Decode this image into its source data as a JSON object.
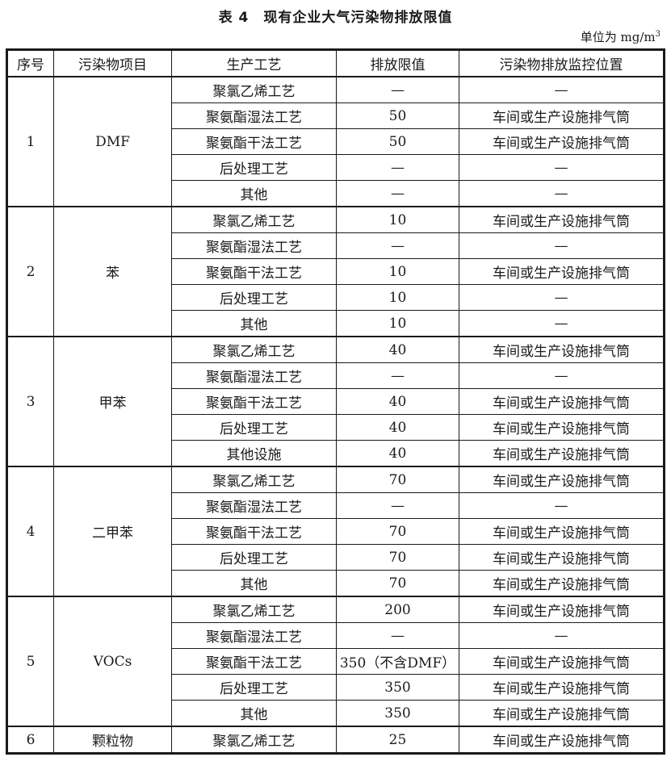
{
  "page": {
    "title": "表 4　现有企业大气污染物排放限值",
    "unit_prefix": "单位为",
    "unit_base": "mg/m",
    "unit_exponent": "3"
  },
  "table": {
    "headers": [
      "序号",
      "污染物项目",
      "生产工艺",
      "排放限值",
      "污染物排放监控位置"
    ],
    "groups": [
      {
        "no": "1",
        "pollutant": "DMF",
        "rows": [
          {
            "process": "聚氯乙烯工艺",
            "limit": "—",
            "location": "—"
          },
          {
            "process": "聚氨酯湿法工艺",
            "limit": "50",
            "location": "车间或生产设施排气筒"
          },
          {
            "process": "聚氨酯干法工艺",
            "limit": "50",
            "location": "车间或生产设施排气筒"
          },
          {
            "process": "后处理工艺",
            "limit": "—",
            "location": "—"
          },
          {
            "process": "其他",
            "limit": "—",
            "location": "—"
          }
        ]
      },
      {
        "no": "2",
        "pollutant": "苯",
        "rows": [
          {
            "process": "聚氯乙烯工艺",
            "limit": "10",
            "location": "车间或生产设施排气筒"
          },
          {
            "process": "聚氨酯湿法工艺",
            "limit": "—",
            "location": "—"
          },
          {
            "process": "聚氨酯干法工艺",
            "limit": "10",
            "location": "车间或生产设施排气筒"
          },
          {
            "process": "后处理工艺",
            "limit": "10",
            "location": "—"
          },
          {
            "process": "其他",
            "limit": "10",
            "location": "—"
          }
        ]
      },
      {
        "no": "3",
        "pollutant": "甲苯",
        "rows": [
          {
            "process": "聚氯乙烯工艺",
            "limit": "40",
            "location": "车间或生产设施排气筒"
          },
          {
            "process": "聚氨酯湿法工艺",
            "limit": "—",
            "location": "—"
          },
          {
            "process": "聚氨酯干法工艺",
            "limit": "40",
            "location": "车间或生产设施排气筒"
          },
          {
            "process": "后处理工艺",
            "limit": "40",
            "location": "车间或生产设施排气筒"
          },
          {
            "process": "其他设施",
            "limit": "40",
            "location": "车间或生产设施排气筒"
          }
        ]
      },
      {
        "no": "4",
        "pollutant": "二甲苯",
        "rows": [
          {
            "process": "聚氯乙烯工艺",
            "limit": "70",
            "location": "车间或生产设施排气筒"
          },
          {
            "process": "聚氨酯湿法工艺",
            "limit": "—",
            "location": "—"
          },
          {
            "process": "聚氨酯干法工艺",
            "limit": "70",
            "location": "车间或生产设施排气筒"
          },
          {
            "process": "后处理工艺",
            "limit": "70",
            "location": "车间或生产设施排气筒"
          },
          {
            "process": "其他",
            "limit": "70",
            "location": "车间或生产设施排气筒"
          }
        ]
      },
      {
        "no": "5",
        "pollutant": "VOCs",
        "rows": [
          {
            "process": "聚氯乙烯工艺",
            "limit": "200",
            "location": "车间或生产设施排气筒"
          },
          {
            "process": "聚氨酯湿法工艺",
            "limit": "—",
            "location": "—"
          },
          {
            "process": "聚氨酯干法工艺",
            "limit": "350（不含DMF）",
            "location": "车间或生产设施排气筒"
          },
          {
            "process": "后处理工艺",
            "limit": "350",
            "location": "车间或生产设施排气筒"
          },
          {
            "process": "其他",
            "limit": "350",
            "location": "车间或生产设施排气筒"
          }
        ]
      },
      {
        "no": "6",
        "pollutant": "颗粒物",
        "rows": [
          {
            "process": "聚氯乙烯工艺",
            "limit": "25",
            "location": "车间或生产设施排气筒"
          }
        ]
      }
    ]
  }
}
